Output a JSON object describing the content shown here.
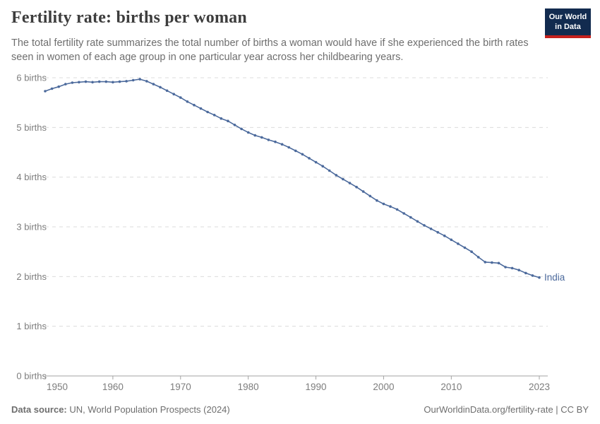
{
  "header": {
    "title": "Fertility rate: births per woman",
    "subtitle": "The total fertility rate summarizes the total number of births a woman would have if she experienced the birth rates seen in women of each age group in one particular year across her childbearing years.",
    "logo": {
      "line1": "Our World",
      "line2": "in Data"
    }
  },
  "chart_data": {
    "type": "line",
    "title": "Fertility rate: births per woman",
    "xlabel": "",
    "ylabel": "births",
    "xlim": [
      1950,
      2023
    ],
    "ylim": [
      0,
      6
    ],
    "grid": "horizontal-dashed",
    "legend_position": "end-of-line-label",
    "x_ticks": [
      1950,
      1960,
      1970,
      1980,
      1990,
      2000,
      2010,
      2023
    ],
    "y_ticks": [
      {
        "value": 0,
        "label": "0 births"
      },
      {
        "value": 1,
        "label": "1 births"
      },
      {
        "value": 2,
        "label": "2 births"
      },
      {
        "value": 3,
        "label": "3 births"
      },
      {
        "value": 4,
        "label": "4 births"
      },
      {
        "value": 5,
        "label": "5 births"
      },
      {
        "value": 6,
        "label": "6 births"
      }
    ],
    "series": [
      {
        "name": "India",
        "color": "#4c6a9c",
        "x": [
          1950,
          1951,
          1952,
          1953,
          1954,
          1955,
          1956,
          1957,
          1958,
          1959,
          1960,
          1961,
          1962,
          1963,
          1964,
          1965,
          1966,
          1967,
          1968,
          1969,
          1970,
          1971,
          1972,
          1973,
          1974,
          1975,
          1976,
          1977,
          1978,
          1979,
          1980,
          1981,
          1982,
          1983,
          1984,
          1985,
          1986,
          1987,
          1988,
          1989,
          1990,
          1991,
          1992,
          1993,
          1994,
          1995,
          1996,
          1997,
          1998,
          1999,
          2000,
          2001,
          2002,
          2003,
          2004,
          2005,
          2006,
          2007,
          2008,
          2009,
          2010,
          2011,
          2012,
          2013,
          2014,
          2015,
          2016,
          2017,
          2018,
          2019,
          2020,
          2021,
          2022,
          2023
        ],
        "values": [
          5.73,
          5.78,
          5.82,
          5.87,
          5.9,
          5.91,
          5.92,
          5.91,
          5.92,
          5.92,
          5.91,
          5.92,
          5.93,
          5.95,
          5.97,
          5.93,
          5.87,
          5.81,
          5.74,
          5.67,
          5.6,
          5.52,
          5.45,
          5.38,
          5.31,
          5.25,
          5.18,
          5.13,
          5.05,
          4.97,
          4.9,
          4.84,
          4.8,
          4.75,
          4.71,
          4.66,
          4.6,
          4.53,
          4.46,
          4.38,
          4.3,
          4.22,
          4.13,
          4.04,
          3.96,
          3.88,
          3.8,
          3.71,
          3.62,
          3.53,
          3.46,
          3.41,
          3.35,
          3.27,
          3.19,
          3.11,
          3.03,
          2.96,
          2.89,
          2.82,
          2.74,
          2.66,
          2.58,
          2.5,
          2.39,
          2.29,
          2.28,
          2.27,
          2.19,
          2.17,
          2.13,
          2.07,
          2.02,
          1.98
        ]
      }
    ]
  },
  "footer": {
    "source_label": "Data source:",
    "source_text": " UN, World Population Prospects (2024)",
    "right_text": "OurWorldinData.org/fertility-rate | CC BY"
  },
  "colors": {
    "line": "#4c6a9c",
    "grid": "#dcdcdc",
    "axis": "#a3a3a3",
    "tick_label": "#7d7d7d",
    "title": "#3d3d3d",
    "subtitle": "#6e6e6e",
    "footer": "#6e6e6e",
    "logo_bg": "#122b4f",
    "logo_bar": "#c5201d"
  }
}
